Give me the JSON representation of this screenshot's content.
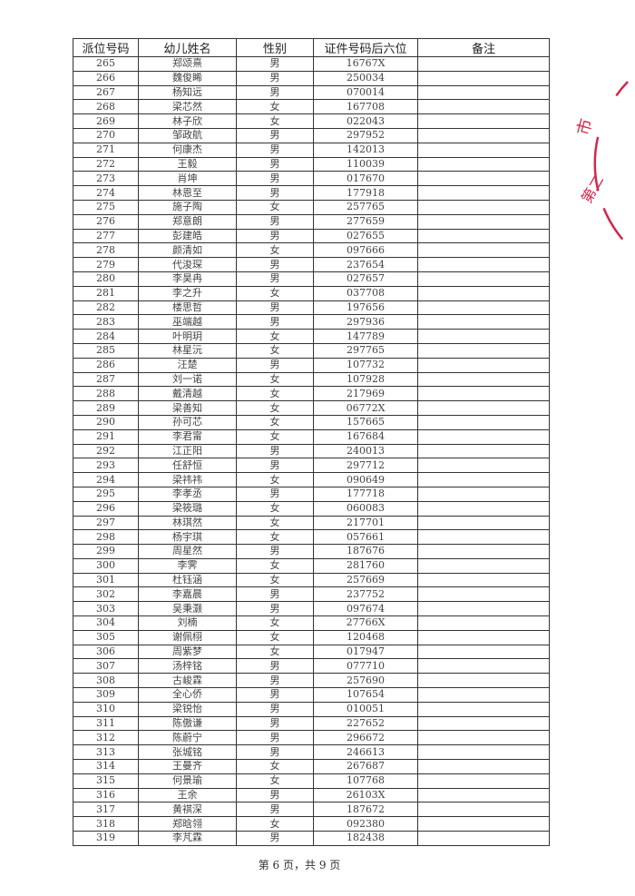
{
  "table": {
    "headers": [
      "派位号码",
      "幼儿姓名",
      "性别",
      "证件号码后六位",
      "备注"
    ],
    "rows": [
      [
        "265",
        "郑颂熹",
        "男",
        "16767X"
      ],
      [
        "266",
        "魏俊睎",
        "男",
        "250034"
      ],
      [
        "267",
        "杨知远",
        "男",
        "070014"
      ],
      [
        "268",
        "梁芯然",
        "女",
        "167708"
      ],
      [
        "269",
        "林子欣",
        "女",
        "022043"
      ],
      [
        "270",
        "邹政航",
        "男",
        "297952"
      ],
      [
        "271",
        "何康杰",
        "男",
        "142013"
      ],
      [
        "272",
        "王毅",
        "男",
        "110039"
      ],
      [
        "273",
        "肖坤",
        "男",
        "017670"
      ],
      [
        "274",
        "林恩至",
        "男",
        "177918"
      ],
      [
        "275",
        "施子陶",
        "女",
        "257765"
      ],
      [
        "276",
        "郑意朗",
        "男",
        "277659"
      ],
      [
        "277",
        "彭建皓",
        "男",
        "027655"
      ],
      [
        "278",
        "颜清如",
        "女",
        "097666"
      ],
      [
        "279",
        "代浚琛",
        "男",
        "237654"
      ],
      [
        "280",
        "李昊冉",
        "男",
        "027657"
      ],
      [
        "281",
        "李之升",
        "女",
        "037708"
      ],
      [
        "282",
        "楼思哲",
        "男",
        "197656"
      ],
      [
        "283",
        "巫端越",
        "男",
        "297936"
      ],
      [
        "284",
        "叶明玥",
        "女",
        "147789"
      ],
      [
        "285",
        "林星沅",
        "女",
        "297765"
      ],
      [
        "286",
        "汪楚",
        "男",
        "107732"
      ],
      [
        "287",
        "刘一诺",
        "女",
        "107928"
      ],
      [
        "288",
        "戴清越",
        "女",
        "217969"
      ],
      [
        "289",
        "梁善知",
        "女",
        "06772X"
      ],
      [
        "290",
        "孙可芯",
        "女",
        "157665"
      ],
      [
        "291",
        "李君甯",
        "女",
        "167684"
      ],
      [
        "292",
        "江正阳",
        "男",
        "240013"
      ],
      [
        "293",
        "任舒恒",
        "男",
        "297712"
      ],
      [
        "294",
        "梁祎祎",
        "女",
        "090649"
      ],
      [
        "295",
        "李孝丞",
        "男",
        "177718"
      ],
      [
        "296",
        "梁筱璐",
        "女",
        "060083"
      ],
      [
        "297",
        "林琪然",
        "女",
        "217701"
      ],
      [
        "298",
        "杨宇琪",
        "女",
        "057661"
      ],
      [
        "299",
        "周星然",
        "男",
        "187676"
      ],
      [
        "300",
        "李霁",
        "女",
        "281760"
      ],
      [
        "301",
        "杜钰涵",
        "女",
        "257669"
      ],
      [
        "302",
        "李嘉晨",
        "男",
        "237752"
      ],
      [
        "303",
        "吴秉灏",
        "男",
        "097674"
      ],
      [
        "304",
        "刘楠",
        "女",
        "27766X"
      ],
      [
        "305",
        "谢佩栩",
        "女",
        "120468"
      ],
      [
        "306",
        "周紫梦",
        "女",
        "017947"
      ],
      [
        "307",
        "汤梓铭",
        "男",
        "077710"
      ],
      [
        "308",
        "古峻霖",
        "男",
        "257690"
      ],
      [
        "309",
        "全心侨",
        "男",
        "107654"
      ],
      [
        "310",
        "梁锐怡",
        "男",
        "010051"
      ],
      [
        "311",
        "陈傲谦",
        "男",
        "227652"
      ],
      [
        "312",
        "陈蔚宁",
        "男",
        "296672"
      ],
      [
        "313",
        "张城铭",
        "男",
        "246613"
      ],
      [
        "314",
        "王曼齐",
        "女",
        "267687"
      ],
      [
        "315",
        "何景瑜",
        "女",
        "107768"
      ],
      [
        "316",
        "王余",
        "男",
        "26103X"
      ],
      [
        "317",
        "黄祺深",
        "男",
        "187672"
      ],
      [
        "318",
        "郑晗翎",
        "女",
        "092380"
      ],
      [
        "319",
        "李芃霖",
        "男",
        "182438"
      ]
    ]
  },
  "footer": {
    "page_text": "第 6 页，共 9 页"
  },
  "stamp": {
    "text": "市 第二",
    "color": "#d0284a"
  }
}
